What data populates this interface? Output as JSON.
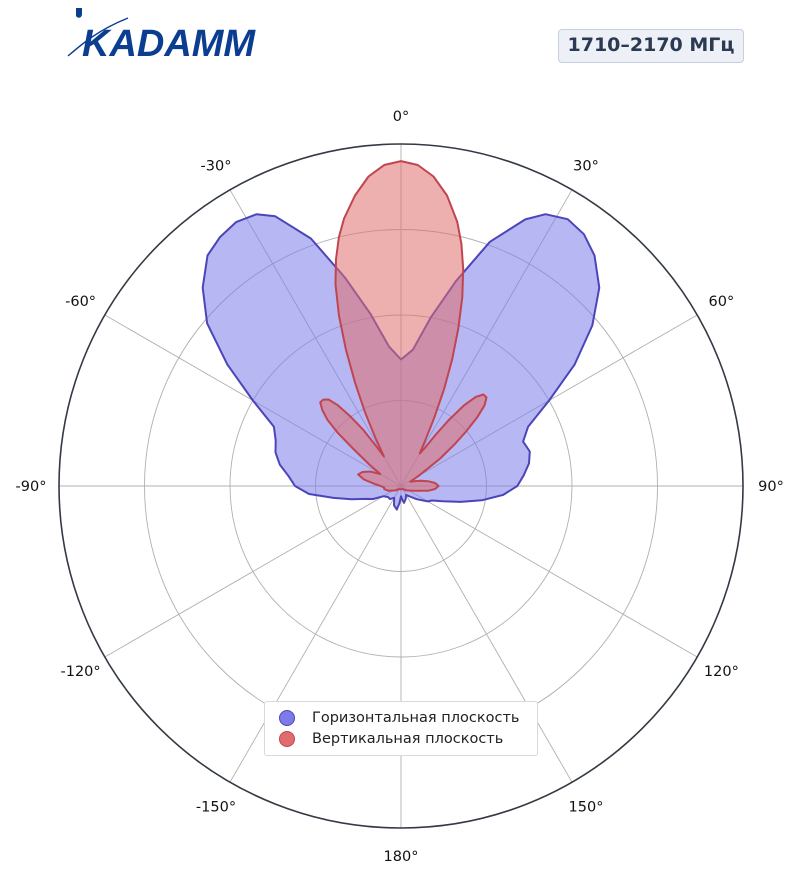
{
  "brand": {
    "logo_text": "KADAMM"
  },
  "badge": {
    "frequency": "1710–2170 МГц"
  },
  "chart_data": {
    "type": "polar-area",
    "angle_direction": "clockwise",
    "zero_location": "top",
    "angle_tick_labels": [
      "0°",
      "30°",
      "60°",
      "90°",
      "120°",
      "150°",
      "180°",
      "-150°",
      "-120°",
      "-90°",
      "-60°",
      "-30°"
    ],
    "angle_ticks_deg": [
      0,
      30,
      60,
      90,
      120,
      150,
      180,
      -150,
      -120,
      -90,
      -60,
      -30
    ],
    "radial_gridlines": 4,
    "rmax": 1.0,
    "grid": true,
    "legend_position": "bottom-center",
    "series": [
      {
        "name": "Горизонтальная плоскость",
        "color": "#7b7bea",
        "edge_color": "#4c45b8",
        "angles_deg": [
          0,
          5,
          10,
          15,
          20,
          25,
          28,
          32,
          36,
          40,
          45,
          50,
          55,
          60,
          65,
          70,
          75,
          80,
          85,
          90,
          95,
          100,
          105,
          110,
          115,
          120,
          130,
          140,
          150,
          160,
          170,
          175,
          180,
          -175,
          -170,
          -160,
          -150,
          -140,
          -130,
          -120,
          -115,
          -110,
          -105,
          -100,
          -95,
          -90,
          -85,
          -80,
          -75,
          -70,
          -65,
          -60,
          -55,
          -50,
          -45,
          -40,
          -36,
          -32,
          -28,
          -25,
          -20,
          -15,
          -10,
          -5
        ],
        "r": [
          0.37,
          0.4,
          0.5,
          0.62,
          0.76,
          0.86,
          0.9,
          0.92,
          0.91,
          0.88,
          0.82,
          0.73,
          0.62,
          0.5,
          0.41,
          0.38,
          0.39,
          0.38,
          0.36,
          0.34,
          0.3,
          0.24,
          0.18,
          0.13,
          0.1,
          0.09,
          0.06,
          0.04,
          0.03,
          0.04,
          0.05,
          0.04,
          0.03,
          0.05,
          0.07,
          0.06,
          0.04,
          0.05,
          0.05,
          0.06,
          0.09,
          0.11,
          0.15,
          0.2,
          0.27,
          0.31,
          0.33,
          0.36,
          0.38,
          0.39,
          0.41,
          0.5,
          0.62,
          0.74,
          0.82,
          0.88,
          0.9,
          0.91,
          0.9,
          0.87,
          0.77,
          0.63,
          0.51,
          0.41
        ]
      },
      {
        "name": "Вертикальная плоскость",
        "color": "#e06d6d",
        "edge_color": "#c0454f",
        "angles_deg": [
          0,
          3,
          6,
          9,
          12,
          14,
          16,
          18,
          20,
          22,
          24,
          26,
          28,
          30,
          32,
          34,
          36,
          38,
          40,
          42,
          44,
          46,
          48,
          50,
          52,
          55,
          60,
          65,
          70,
          75,
          80,
          85,
          90,
          95,
          100,
          110,
          130,
          150,
          180,
          -150,
          -130,
          -110,
          -100,
          -95,
          -90,
          -85,
          -80,
          -75,
          -70,
          -65,
          -60,
          -56,
          -52,
          -50,
          -48,
          -46,
          -44,
          -42,
          -40,
          -38,
          -36,
          -34,
          -32,
          -30,
          -28,
          -26,
          -24,
          -22,
          -20,
          -18,
          -16,
          -14,
          -12,
          -9,
          -6,
          -3
        ],
        "r": [
          0.95,
          0.94,
          0.91,
          0.86,
          0.79,
          0.73,
          0.66,
          0.58,
          0.49,
          0.4,
          0.31,
          0.22,
          0.15,
          0.11,
          0.13,
          0.18,
          0.24,
          0.3,
          0.34,
          0.36,
          0.36,
          0.34,
          0.3,
          0.25,
          0.2,
          0.14,
          0.06,
          0.03,
          0.04,
          0.06,
          0.08,
          0.1,
          0.11,
          0.1,
          0.08,
          0.04,
          0.02,
          0.01,
          0.01,
          0.01,
          0.02,
          0.04,
          0.05,
          0.05,
          0.06,
          0.08,
          0.11,
          0.13,
          0.12,
          0.1,
          0.07,
          0.11,
          0.18,
          0.24,
          0.29,
          0.32,
          0.34,
          0.34,
          0.33,
          0.3,
          0.25,
          0.2,
          0.14,
          0.1,
          0.16,
          0.24,
          0.33,
          0.43,
          0.53,
          0.62,
          0.69,
          0.75,
          0.8,
          0.86,
          0.91,
          0.94
        ]
      }
    ]
  }
}
